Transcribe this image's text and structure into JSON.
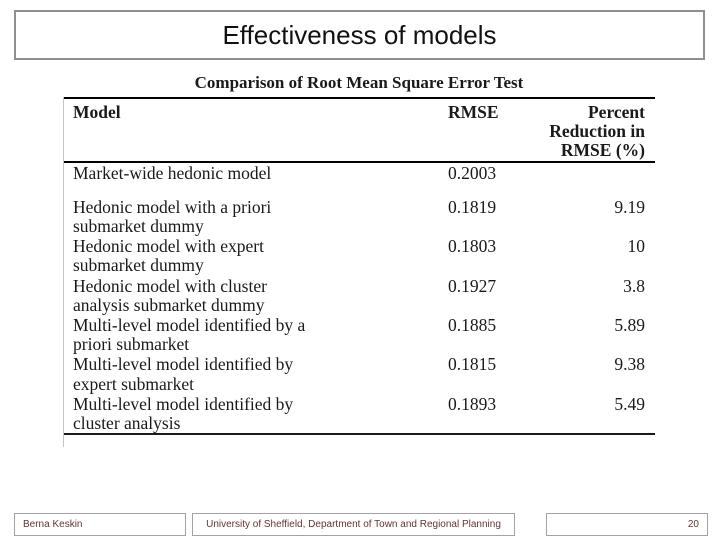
{
  "slide": {
    "title": "Effectiveness of models"
  },
  "table": {
    "caption": "Comparison of Root Mean Square Error Test",
    "columns": [
      "Model",
      "RMSE",
      "Percent\nReduction in\nRMSE (%)"
    ],
    "rows": [
      {
        "model": "Market-wide hedonic model",
        "rmse": "0.2003",
        "reduction": ""
      },
      {
        "model": "Hedonic model with a priori\nsubmarket dummy",
        "rmse": "0.1819",
        "reduction": "9.19"
      },
      {
        "model": "Hedonic model with expert\nsubmarket dummy",
        "rmse": "0.1803",
        "reduction": "10"
      },
      {
        "model": "Hedonic model with cluster\nanalysis submarket dummy",
        "rmse": "0.1927",
        "reduction": "3.8"
      },
      {
        "model": "Multi-level model identified by a\npriori submarket",
        "rmse": "0.1885",
        "reduction": "5.89"
      },
      {
        "model": "Multi-level model identified by\nexpert submarket",
        "rmse": "0.1815",
        "reduction": "9.38"
      },
      {
        "model": "Multi-level model identified by\ncluster analysis",
        "rmse": "0.1893",
        "reduction": "5.49"
      }
    ]
  },
  "footer": {
    "author": "Berna Keskin",
    "institution": "University of Sheffield, Department of Town and Regional Planning",
    "page_number": "20"
  },
  "colors": {
    "title_text": "#111111",
    "table_rule": "#000000",
    "footer_text": "#663333",
    "box_border": "#8f8f8f"
  }
}
